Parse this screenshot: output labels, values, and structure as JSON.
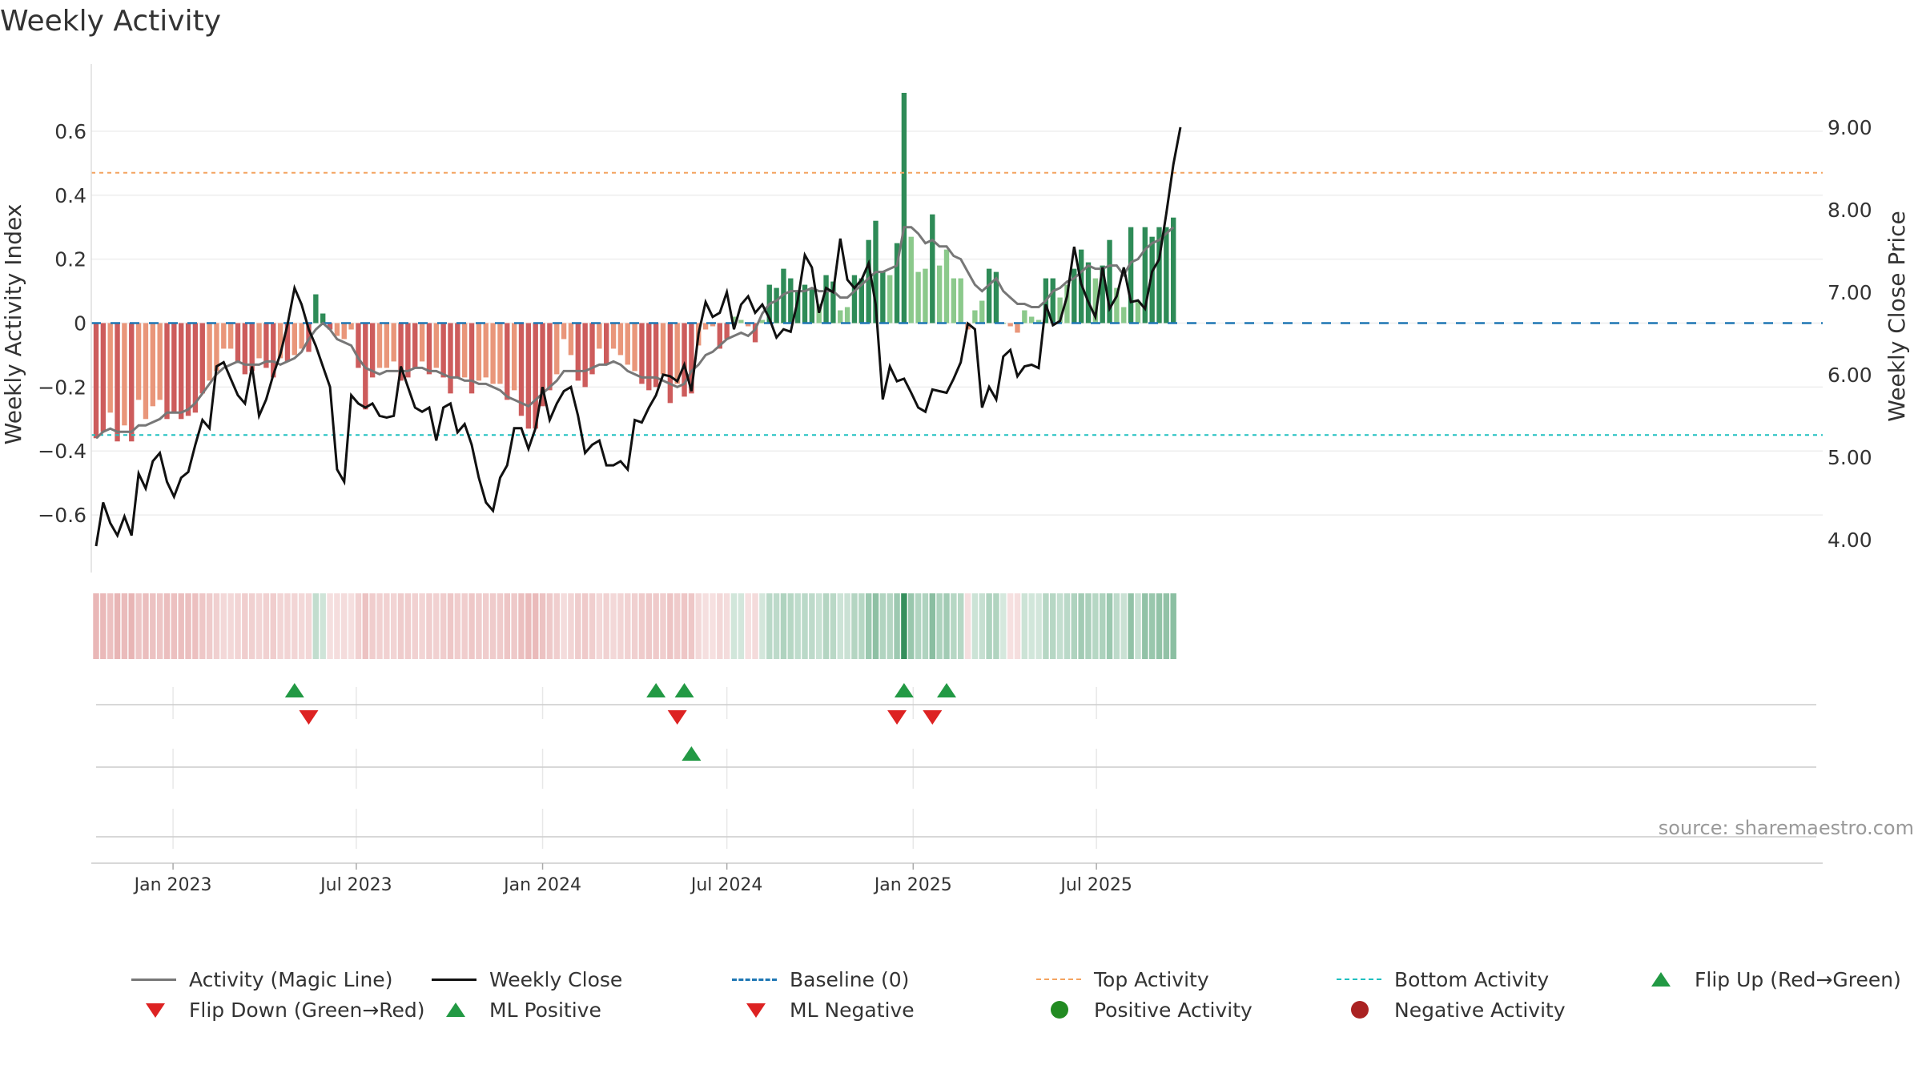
{
  "title": "Weekly Activity",
  "source": "source: sharemaestro.com",
  "colors": {
    "pos_strong": "#2e8b57",
    "pos_weak": "#8bc98b",
    "neg_strong": "#cd5c5c",
    "neg_weak": "#e9967a",
    "magic": "#777777",
    "close": "#111111",
    "baseline": "#1f77b4",
    "top": "#f4a460",
    "bottom": "#20c0c0",
    "up": "#229944",
    "down": "#dd2222"
  },
  "legend": [
    {
      "key": "magic",
      "label": "Activity (Magic Line)"
    },
    {
      "key": "close",
      "label": "Weekly Close"
    },
    {
      "key": "baseline",
      "label": "Baseline (0)"
    },
    {
      "key": "top",
      "label": "Top Activity"
    },
    {
      "key": "bottom",
      "label": "Bottom Activity"
    },
    {
      "key": "flip_up",
      "label": "Flip Up (Red→Green)"
    },
    {
      "key": "flip_down",
      "label": "Flip Down (Green→Red)"
    },
    {
      "key": "ml_pos",
      "label": "ML Positive"
    },
    {
      "key": "ml_neg",
      "label": "ML Negative"
    },
    {
      "key": "pos_act",
      "label": "Positive Activity"
    },
    {
      "key": "neg_act",
      "label": "Negative Activity"
    }
  ],
  "chart_data": {
    "type": "bar",
    "title": "Weekly Activity",
    "x_start": "2022-10-17",
    "weeks": 153,
    "x_ticks": [
      {
        "date": "2023-01-01",
        "label": "Jan 2023"
      },
      {
        "date": "2023-07-01",
        "label": "Jul 2023"
      },
      {
        "date": "2024-01-01",
        "label": "Jan 2024"
      },
      {
        "date": "2024-07-01",
        "label": "Jul 2024"
      },
      {
        "date": "2025-01-01",
        "label": "Jan 2025"
      },
      {
        "date": "2025-07-01",
        "label": "Jul 2025"
      }
    ],
    "y_left": {
      "label": "Weekly Activity Index",
      "lim": [
        -0.78,
        0.78
      ],
      "ticks": [
        {
          "v": 0.6,
          "t": "0.6"
        },
        {
          "v": 0.4,
          "t": "0.4"
        },
        {
          "v": 0.2,
          "t": "0.2"
        },
        {
          "v": 0,
          "t": "0"
        },
        {
          "v": -0.2,
          "t": "−0.2"
        },
        {
          "v": -0.4,
          "t": "−0.4"
        },
        {
          "v": -0.6,
          "t": "−0.6"
        }
      ]
    },
    "y_right": {
      "label": "Weekly Close Price",
      "lim": [
        3.6,
        9.65
      ],
      "ticks": [
        {
          "v": 9,
          "t": "9.00"
        },
        {
          "v": 8,
          "t": "8.00"
        },
        {
          "v": 7,
          "t": "7.00"
        },
        {
          "v": 6,
          "t": "6.00"
        },
        {
          "v": 5,
          "t": "5.00"
        },
        {
          "v": 4,
          "t": "4.00"
        }
      ]
    },
    "top_activity": 0.47,
    "bottom_activity": -0.35,
    "baseline": 0,
    "activity": [
      -0.36,
      -0.34,
      -0.28,
      -0.37,
      -0.32,
      -0.37,
      -0.24,
      -0.3,
      -0.26,
      -0.24,
      -0.3,
      -0.28,
      -0.3,
      -0.29,
      -0.28,
      -0.22,
      -0.18,
      -0.15,
      -0.08,
      -0.08,
      -0.12,
      -0.16,
      -0.15,
      -0.11,
      -0.14,
      -0.17,
      -0.11,
      -0.12,
      -0.1,
      -0.08,
      -0.09,
      0.09,
      0.03,
      -0.02,
      -0.04,
      -0.05,
      -0.02,
      -0.14,
      -0.27,
      -0.17,
      -0.14,
      -0.14,
      -0.12,
      -0.18,
      -0.17,
      -0.14,
      -0.12,
      -0.16,
      -0.14,
      -0.17,
      -0.22,
      -0.17,
      -0.17,
      -0.22,
      -0.18,
      -0.17,
      -0.19,
      -0.19,
      -0.24,
      -0.21,
      -0.29,
      -0.33,
      -0.33,
      -0.26,
      -0.21,
      -0.16,
      -0.05,
      -0.1,
      -0.18,
      -0.2,
      -0.16,
      -0.08,
      -0.13,
      -0.08,
      -0.1,
      -0.13,
      -0.15,
      -0.19,
      -0.21,
      -0.2,
      -0.16,
      -0.25,
      -0.19,
      -0.23,
      -0.22,
      -0.07,
      -0.02,
      -0.01,
      -0.08,
      -0.05,
      0.02,
      0.01,
      -0.01,
      -0.06,
      0.01,
      0.12,
      0.11,
      0.17,
      0.14,
      0.1,
      0.12,
      0.11,
      0.06,
      0.15,
      0.13,
      0.04,
      0.05,
      0.15,
      0.14,
      0.26,
      0.32,
      0.16,
      0.15,
      0.25,
      0.72,
      0.27,
      0.16,
      0.17,
      0.34,
      0.18,
      0.23,
      0.14,
      0.14,
      -0.02,
      0.04,
      0.07,
      0.17,
      0.16,
      0.0,
      -0.01,
      -0.03,
      0.04,
      0.02,
      0.01,
      0.14,
      0.14,
      0.08,
      0.12,
      0.17,
      0.23,
      0.19,
      0.14,
      0.18,
      0.26,
      0.11,
      0.05,
      0.3,
      0.07,
      0.3,
      0.27,
      0.3,
      0.3,
      0.33
    ],
    "magic_line": [
      -0.36,
      -0.34,
      -0.33,
      -0.34,
      -0.34,
      -0.34,
      -0.32,
      -0.32,
      -0.31,
      -0.3,
      -0.28,
      -0.28,
      -0.28,
      -0.27,
      -0.25,
      -0.22,
      -0.19,
      -0.16,
      -0.14,
      -0.13,
      -0.12,
      -0.13,
      -0.13,
      -0.13,
      -0.12,
      -0.12,
      -0.13,
      -0.12,
      -0.11,
      -0.09,
      -0.05,
      -0.02,
      0.0,
      -0.02,
      -0.05,
      -0.06,
      -0.07,
      -0.11,
      -0.14,
      -0.15,
      -0.16,
      -0.15,
      -0.15,
      -0.15,
      -0.15,
      -0.14,
      -0.14,
      -0.15,
      -0.15,
      -0.16,
      -0.17,
      -0.17,
      -0.18,
      -0.18,
      -0.19,
      -0.19,
      -0.2,
      -0.21,
      -0.23,
      -0.24,
      -0.25,
      -0.26,
      -0.24,
      -0.22,
      -0.2,
      -0.18,
      -0.15,
      -0.15,
      -0.15,
      -0.15,
      -0.14,
      -0.13,
      -0.13,
      -0.12,
      -0.13,
      -0.15,
      -0.16,
      -0.17,
      -0.17,
      -0.17,
      -0.18,
      -0.19,
      -0.2,
      -0.19,
      -0.15,
      -0.13,
      -0.1,
      -0.09,
      -0.07,
      -0.05,
      -0.04,
      -0.03,
      -0.04,
      -0.02,
      0.03,
      0.06,
      0.07,
      0.09,
      0.1,
      0.1,
      0.1,
      0.11,
      0.1,
      0.1,
      0.1,
      0.08,
      0.08,
      0.1,
      0.12,
      0.14,
      0.16,
      0.16,
      0.17,
      0.18,
      0.3,
      0.3,
      0.28,
      0.25,
      0.26,
      0.24,
      0.24,
      0.21,
      0.2,
      0.16,
      0.12,
      0.1,
      0.12,
      0.14,
      0.1,
      0.08,
      0.06,
      0.06,
      0.05,
      0.05,
      0.07,
      0.1,
      0.11,
      0.13,
      0.14,
      0.16,
      0.18,
      0.17,
      0.17,
      0.18,
      0.18,
      0.15,
      0.19,
      0.2,
      0.23,
      0.25,
      0.26,
      0.28,
      0.3
    ],
    "weekly_close": [
      3.92,
      4.45,
      4.2,
      4.05,
      4.28,
      4.05,
      4.8,
      4.62,
      4.95,
      5.05,
      4.7,
      4.52,
      4.75,
      4.82,
      5.15,
      5.45,
      5.35,
      6.1,
      6.15,
      5.95,
      5.75,
      5.65,
      6.1,
      5.5,
      5.7,
      6.0,
      6.25,
      6.6,
      7.05,
      6.85,
      6.55,
      6.35,
      6.1,
      5.85,
      4.85,
      4.7,
      5.75,
      5.65,
      5.6,
      5.65,
      5.5,
      5.48,
      5.5,
      6.1,
      5.85,
      5.6,
      5.55,
      5.6,
      5.2,
      5.6,
      5.65,
      5.3,
      5.4,
      5.15,
      4.75,
      4.45,
      4.35,
      4.75,
      4.9,
      5.35,
      5.35,
      5.1,
      5.35,
      5.85,
      5.45,
      5.65,
      5.8,
      5.85,
      5.5,
      5.05,
      5.15,
      5.2,
      4.9,
      4.9,
      4.95,
      4.85,
      5.45,
      5.42,
      5.6,
      5.75,
      6.0,
      5.98,
      5.92,
      6.12,
      5.8,
      6.5,
      6.88,
      6.7,
      6.75,
      7.0,
      6.55,
      6.85,
      6.95,
      6.75,
      6.85,
      6.68,
      6.45,
      6.55,
      6.52,
      6.9,
      7.45,
      7.3,
      6.75,
      7.05,
      7.0,
      7.65,
      7.15,
      7.05,
      7.15,
      7.35,
      6.85,
      5.7,
      6.1,
      5.92,
      5.95,
      5.78,
      5.6,
      5.55,
      5.82,
      5.8,
      5.78,
      5.95,
      6.15,
      6.62,
      6.55,
      5.6,
      5.85,
      5.7,
      6.22,
      6.3,
      5.98,
      6.1,
      6.12,
      6.08,
      6.85,
      6.6,
      6.65,
      6.95,
      7.55,
      7.1,
      6.88,
      6.7,
      7.3,
      6.8,
      6.95,
      7.3,
      6.88,
      6.9,
      6.8,
      7.25,
      7.4,
      7.95,
      8.55,
      9.0
    ],
    "heat_strip": "weekly activity heat strip (red = negative, green = positive)",
    "flip_up_weeks": [
      28,
      79,
      83,
      114,
      120
    ],
    "flip_down_weeks": [
      30,
      82,
      113,
      118
    ],
    "ml_positive_weeks": [
      84
    ],
    "ml_negative_weeks": []
  }
}
